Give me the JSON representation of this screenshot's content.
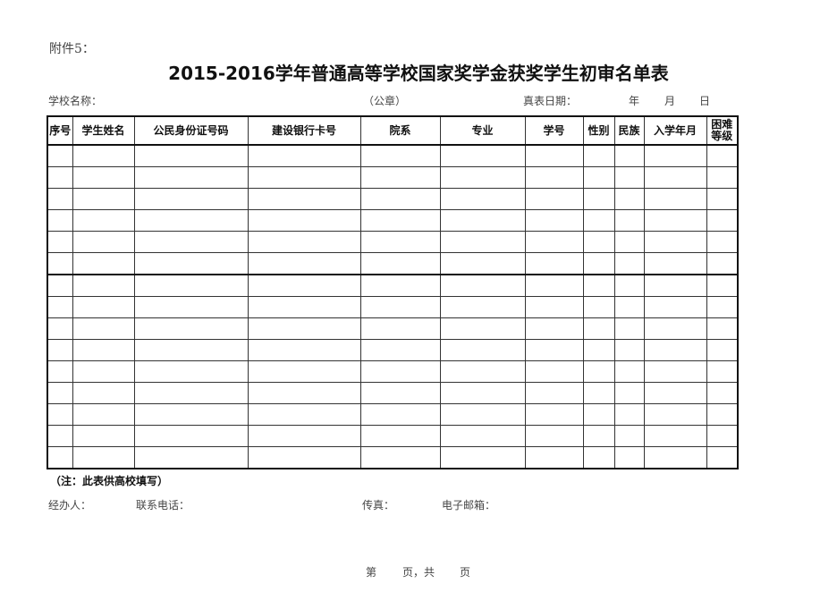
{
  "attachment_label": "附件5：",
  "title": "2015-2016学年普通高等学校国家奖学金获奖学生初审名单表",
  "info_line": {
    "school_name": "学校名称：",
    "seal": "（公章）",
    "fill_date": "真表日期：",
    "year": "年",
    "month": "月",
    "day": "日"
  },
  "table": {
    "headers": [
      "序号",
      "学生姓名",
      "公民身份证号码",
      "建设银行卡号",
      "院系",
      "专业",
      "学号",
      "性别",
      "民族",
      "入学年月",
      "困难等级"
    ]
  },
  "note": "（注：此表供高校填写）",
  "footer": {
    "handler": "经办人：",
    "phone": "联系电话：",
    "fax": "传真：",
    "email": "电子邮箱："
  },
  "page_number": {
    "page": "第",
    "of": "页，共",
    "pages": "页"
  }
}
